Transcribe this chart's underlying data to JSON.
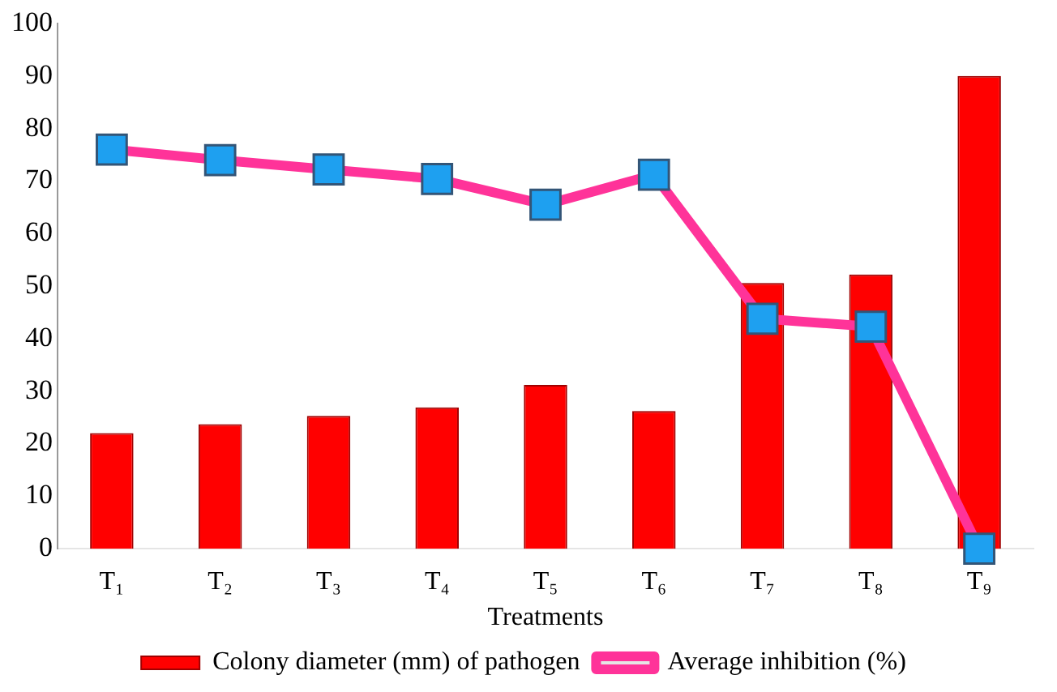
{
  "chart_data": {
    "type": "bar",
    "xlabel": "Treatments",
    "categories": [
      "T₁",
      "T₂",
      "T₃",
      "T₄",
      "T₅",
      "T₆",
      "T₇",
      "T₈",
      "T₉"
    ],
    "series": [
      {
        "name": "Colony diameter (mm) of pathogen",
        "color": "#ff0000",
        "values": [
          22,
          23.7,
          25.3,
          26.9,
          31.2,
          26.2,
          50.6,
          52.2,
          90
        ]
      },
      {
        "name": "Average inhibition (%)",
        "type": "line",
        "color": "#ff3399",
        "marker": "square",
        "values": [
          76,
          74,
          72.2,
          70.4,
          65.5,
          71.2,
          43.8,
          42.3,
          0
        ]
      }
    ],
    "ylim": [
      0,
      100
    ],
    "yticks": [
      0,
      10,
      20,
      30,
      40,
      50,
      60,
      70,
      80,
      90,
      100
    ],
    "grid": false,
    "legend": "bottom"
  }
}
